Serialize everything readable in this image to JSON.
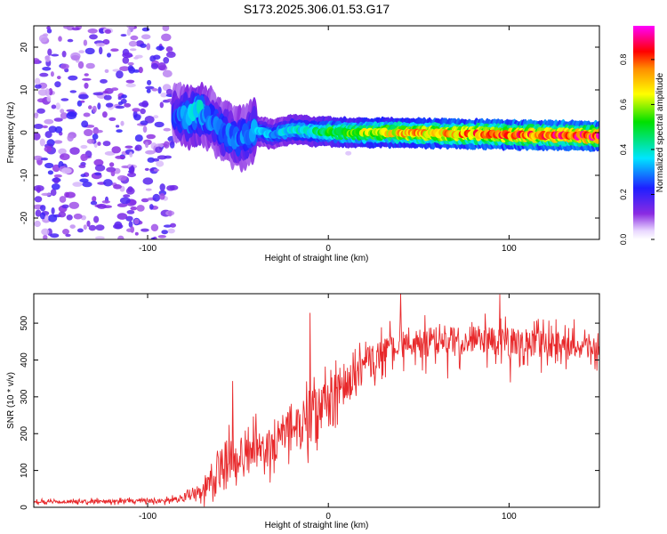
{
  "title": "S173.2025.306.01.53.G17",
  "colors": {
    "line": "#e8292b",
    "background": "#ffffff",
    "axis": "#000000"
  },
  "chart_data": [
    {
      "type": "heatmap",
      "title": "S173.2025.306.01.53.G17",
      "xlabel": "Height of straight line (km)",
      "ylabel": "Frequency (Hz)",
      "xlim": [
        -163,
        150
      ],
      "ylim": [
        -25,
        25
      ],
      "xticks": [
        -100,
        0,
        100
      ],
      "yticks": [
        -20,
        -10,
        0,
        10,
        20
      ],
      "grid": false,
      "colorbar": {
        "label": "Normalized spectral amplitude",
        "range": [
          0,
          0.95
        ],
        "ticks": [
          0.0,
          0.2,
          0.4,
          0.6,
          0.8
        ],
        "tick_labels": [
          "0.0",
          "0.2",
          "0.4",
          "0.6",
          "0.8"
        ],
        "colormap": "rainbow (purple-blue-cyan-green-yellow-red-magenta)"
      },
      "ridge": {
        "description": "Signal ridge appears near -85 km; scattered noise below that height",
        "heights": [
          -85,
          -78,
          -72,
          -65,
          -58,
          -50,
          -40,
          -30,
          -20,
          -10,
          0,
          20,
          40,
          60,
          80,
          100,
          120,
          150
        ],
        "frequency": [
          4.0,
          3.5,
          5.0,
          3.0,
          0.0,
          -1.5,
          0.5,
          -0.5,
          0.8,
          0.3,
          0.2,
          0.0,
          0.0,
          -0.2,
          -0.3,
          -0.5,
          -0.6,
          -0.8
        ],
        "amplitude": [
          0.25,
          0.35,
          0.4,
          0.3,
          0.3,
          0.3,
          0.35,
          0.35,
          0.4,
          0.45,
          0.55,
          0.65,
          0.75,
          0.78,
          0.82,
          0.85,
          0.88,
          0.9
        ]
      }
    },
    {
      "type": "line",
      "xlabel": "Height of straight line (km)",
      "ylabel": "SNR (10 * v/v)",
      "xlim": [
        -163,
        150
      ],
      "ylim": [
        0,
        580
      ],
      "xticks": [
        -100,
        0,
        100
      ],
      "yticks": [
        0,
        100,
        200,
        300,
        400,
        500
      ],
      "grid": false,
      "series": [
        {
          "name": "SNR",
          "envelope_x": [
            -163,
            -120,
            -90,
            -80,
            -70,
            -62,
            -55,
            -50,
            -45,
            -40,
            -35,
            -30,
            -25,
            -20,
            -15,
            -10,
            -5,
            0,
            5,
            10,
            15,
            20,
            30,
            40,
            60,
            80,
            100,
            120,
            140,
            150
          ],
          "envelope_y": [
            15,
            16,
            18,
            25,
            40,
            90,
            160,
            110,
            130,
            160,
            150,
            170,
            220,
            230,
            200,
            260,
            280,
            300,
            320,
            330,
            350,
            380,
            420,
            440,
            450,
            455,
            450,
            445,
            440,
            440
          ],
          "noise_amplitude": [
            8,
            10,
            12,
            20,
            40,
            80,
            100,
            80,
            90,
            100,
            100,
            110,
            110,
            110,
            110,
            110,
            100,
            100,
            100,
            100,
            90,
            90,
            80,
            80,
            80,
            80,
            75,
            70,
            70,
            70
          ],
          "peaks": [
            {
              "x": -53,
              "y": 343
            },
            {
              "x": -10,
              "y": 528
            },
            {
              "x": 40,
              "y": 579
            },
            {
              "x": 95,
              "y": 578
            }
          ]
        }
      ]
    }
  ]
}
